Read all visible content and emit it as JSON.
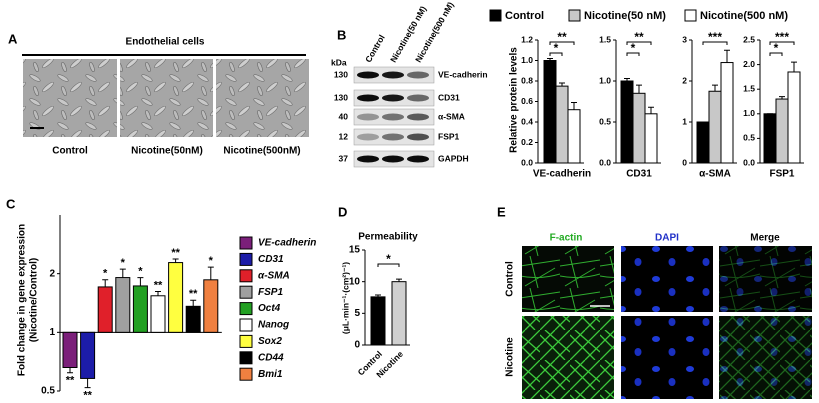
{
  "panel_labels": [
    "A",
    "B",
    "C",
    "D",
    "E"
  ],
  "panel_a": {
    "title": "Endothelial cells",
    "labels": [
      "Control",
      "Nicotine(50nM)",
      "Nicotine(500nM)"
    ]
  },
  "panel_b_blot": {
    "kda_unit": "kDa",
    "lanes": [
      "Control",
      "Nicotine(50 nM)",
      "Nicotine(500 nM)"
    ],
    "rows": [
      {
        "kda": "130",
        "protein": "VE-cadherin"
      },
      {
        "kda": "130",
        "protein": "CD31"
      },
      {
        "kda": "40",
        "protein": "α-SMA"
      },
      {
        "kda": "12",
        "protein": "FSP1"
      },
      {
        "kda": "37",
        "protein": "GAPDH"
      }
    ]
  },
  "panel_e": {
    "channels": [
      "F-actin",
      "DAPI",
      "Merge"
    ],
    "conditions": [
      "Control",
      "Nicotine"
    ]
  },
  "chart_data": [
    {
      "type": "bar",
      "y_label": "Relative protein levels",
      "series_names": [
        "Control",
        "Nicotine(50 nM)",
        "Nicotine(500 nM)"
      ],
      "colors": [
        "#000000",
        "#c8c8c8",
        "#ffffff"
      ],
      "x_label": "VE-cadherin",
      "values": [
        1.0,
        0.75,
        0.52
      ],
      "errors": [
        0.02,
        0.03,
        0.07
      ],
      "ylim": [
        0,
        1.2
      ],
      "yticks": [
        {
          "value": 0,
          "label": "0.0"
        },
        0.2,
        0.4,
        0.6,
        0.8,
        {
          "value": 1,
          "label": "1.0"
        },
        1.2
      ],
      "significance": {
        "vs_50": "*",
        "vs_500": "**"
      }
    },
    {
      "type": "bar",
      "x_label": "CD31",
      "values": [
        1.0,
        0.85,
        0.6
      ],
      "errors": [
        0.03,
        0.1,
        0.08
      ],
      "ylim": [
        0,
        1.5
      ],
      "yticks": [
        {
          "value": 0,
          "label": "0.0"
        },
        0.5,
        {
          "value": 1,
          "label": "1.0"
        },
        1.5
      ],
      "significance": {
        "vs_50": "*",
        "vs_500": "**"
      }
    },
    {
      "type": "bar",
      "x_label": "α-SMA",
      "values": [
        1.0,
        1.75,
        2.45
      ],
      "errors": [
        0,
        0.15,
        0.3
      ],
      "ylim": [
        0,
        3
      ],
      "yticks": [
        0,
        1,
        2,
        3
      ],
      "significance": {
        "vs_500": "***"
      }
    },
    {
      "type": "bar",
      "x_label": "FSP1",
      "values": [
        1.0,
        1.3,
        1.85
      ],
      "errors": [
        0,
        0.05,
        0.2
      ],
      "ylim": [
        0,
        2.5
      ],
      "yticks": [
        {
          "value": 0,
          "label": "0.0"
        },
        0.5,
        {
          "value": 1,
          "label": "1.0"
        },
        1.5,
        {
          "value": 2,
          "label": "2.0"
        },
        2.5
      ],
      "significance": {
        "vs_50": "*",
        "vs_500": "***"
      }
    },
    {
      "type": "bar",
      "yscale": "log",
      "baseline": 1,
      "y_label": [
        "Fold change in gene expression",
        "(Nicotine/Control)"
      ],
      "categories": [
        "VE-cadherin",
        "CD31",
        "α-SMA",
        "FSP1",
        "Oct4",
        "Nanog",
        "Sox2",
        "CD44",
        "Bmi1"
      ],
      "colors": [
        "#7b1f7a",
        "#1c1ca8",
        "#e0202a",
        "#a0a0a0",
        "#22a022",
        "#ffffff",
        "#ffff40",
        "#000000",
        "#f08040"
      ],
      "values": [
        0.66,
        0.58,
        1.71,
        1.91,
        1.73,
        1.54,
        2.28,
        1.36,
        1.86
      ],
      "errors": [
        0.04,
        0.06,
        0.15,
        0.2,
        0.18,
        0.08,
        0.1,
        0.1,
        0.3
      ],
      "significance": [
        "**",
        "**",
        "*",
        "*",
        "*",
        "**",
        "**",
        "**",
        "*"
      ],
      "ylim": [
        0.5,
        4
      ],
      "yticks": [
        0.5,
        1,
        2
      ]
    },
    {
      "type": "bar",
      "title": "Permeability",
      "y_label": "(μL·min⁻¹·(cm²)⁻¹)",
      "categories": [
        "Control",
        "Nicotine"
      ],
      "colors": [
        "#000000",
        "#d0d0d0"
      ],
      "values": [
        7.6,
        10.0
      ],
      "errors": [
        0.3,
        0.4
      ],
      "significance": "*",
      "ylim": [
        0,
        15
      ],
      "yticks": [
        0,
        5,
        10,
        15
      ]
    }
  ]
}
